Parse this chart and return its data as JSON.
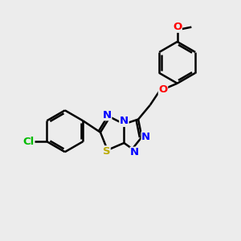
{
  "background_color": "#ececec",
  "bond_color": "#000000",
  "bond_width": 1.8,
  "atom_labels": {
    "Cl": {
      "color": "#00bb00"
    },
    "N": {
      "color": "#0000ff"
    },
    "S": {
      "color": "#bbaa00"
    },
    "O": {
      "color": "#ff0000"
    }
  },
  "figsize": [
    3.0,
    3.0
  ],
  "dpi": 100
}
